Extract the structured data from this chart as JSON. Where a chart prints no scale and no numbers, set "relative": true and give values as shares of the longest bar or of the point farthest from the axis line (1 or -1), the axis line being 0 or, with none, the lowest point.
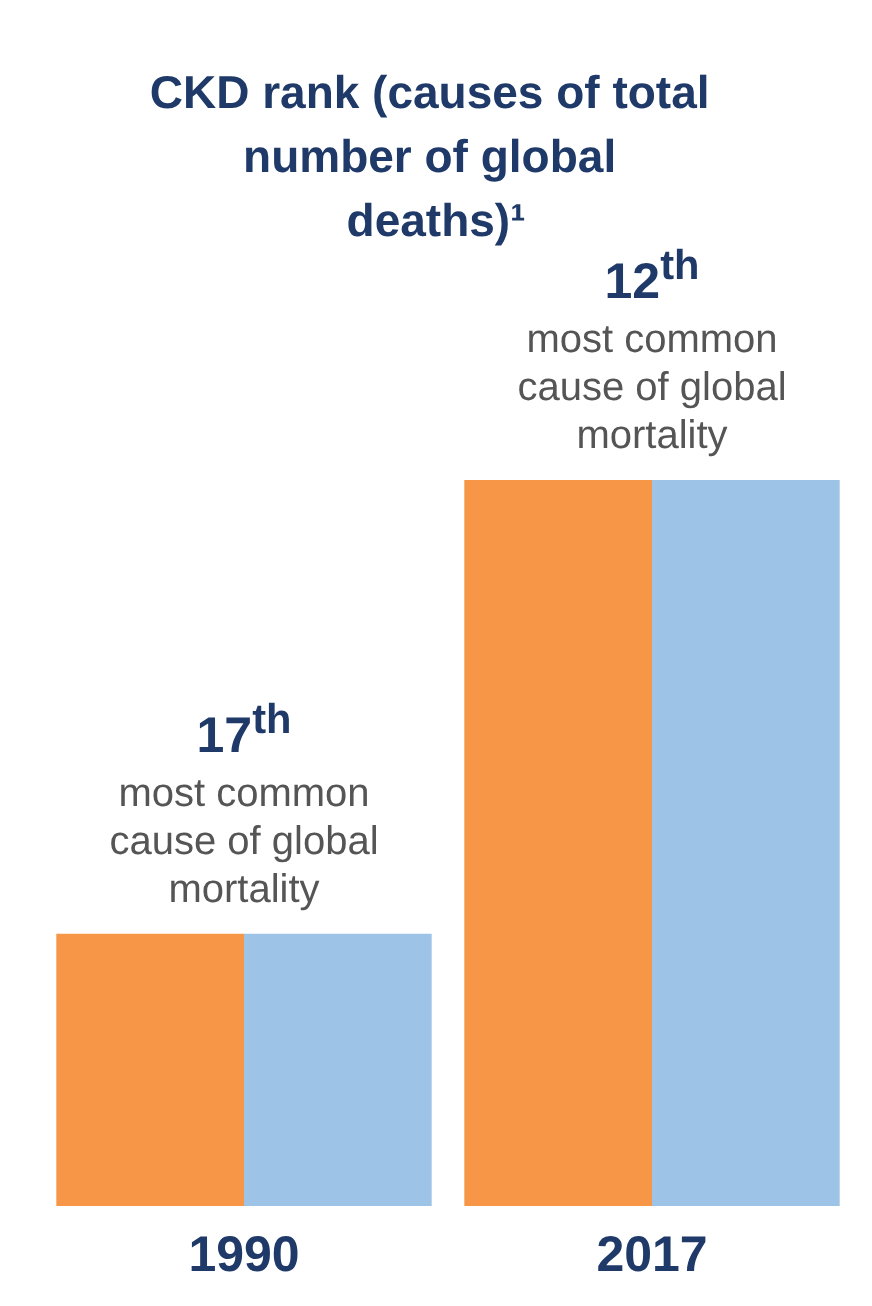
{
  "chart_data": {
    "type": "bar",
    "title": "CKD rank (causes of total number of global deaths)¹",
    "categories": [
      "1990",
      "2017"
    ],
    "relative": true,
    "series": [
      {
        "color": "#f79646",
        "values": [
          0.375,
          1
        ]
      },
      {
        "color": "#9dc3e6",
        "values": [
          0.375,
          1
        ]
      }
    ],
    "annotations": [
      {
        "text": "17$^{th}$ most common cause of global mortality",
        "x": "1990",
        "y": 0.375
      },
      {
        "text": "12$^{th}$ most common cause of global mortality",
        "x": "2017",
        "y": 1
      }
    ]
  }
}
